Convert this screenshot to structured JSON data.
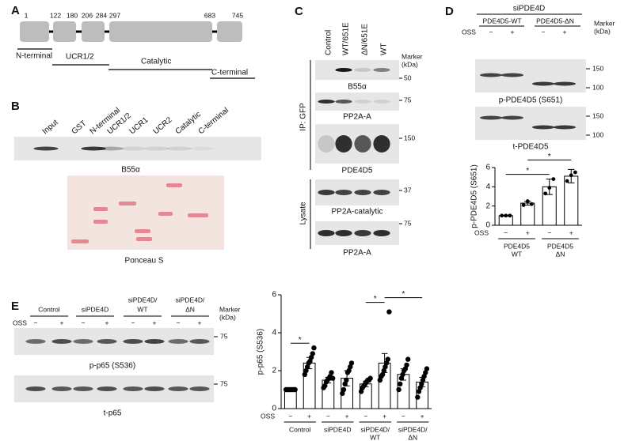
{
  "panel_labels": [
    "A",
    "B",
    "C",
    "D",
    "E"
  ],
  "panel_a": {
    "positions": [
      1,
      122,
      180,
      206,
      284,
      297,
      683,
      745
    ],
    "regions": [
      "N-terminal",
      "UCR1/2",
      "Catalytic",
      "C-terminal"
    ]
  },
  "panel_b": {
    "lanes": [
      "Input",
      "GST",
      "N-terminal",
      "UCR1/2",
      "UCR1",
      "UCR2",
      "Catalytic",
      "C-terminal"
    ],
    "blot": "B55α",
    "stain": "Ponceau S"
  },
  "panel_c": {
    "lanes": [
      "Control",
      "WT/651E",
      "ΔN/651E",
      "WT"
    ],
    "marker": [
      "Marker",
      "(kDa)"
    ],
    "ip": "IP: GFP",
    "lysate": "Lysate",
    "blots": [
      {
        "label": "B55α",
        "marker": 50
      },
      {
        "label": "PP2A-A",
        "marker": 75
      },
      {
        "label": "PDE4D5",
        "marker": 150
      },
      {
        "label": "PP2A-catalytic",
        "marker": 37
      },
      {
        "label": "PP2A-A",
        "marker": 75
      }
    ]
  },
  "panel_d": {
    "sirna": "siPDE4D",
    "groups": [
      "PDE4D5-WT",
      "PDE4D5-ΔN"
    ],
    "marker": [
      "Marker",
      "(kDa)"
    ],
    "oss": "OSS",
    "treat": [
      "−",
      "+",
      "−",
      "+"
    ],
    "blots": [
      {
        "label": "p-PDE4D5 (S651)",
        "markers": [
          150,
          100
        ]
      },
      {
        "label": "t-PDE4D5",
        "markers": [
          150,
          100
        ]
      }
    ]
  },
  "panel_e": {
    "groups": [
      [
        "Control"
      ],
      [
        "siPDE4D"
      ],
      [
        "siPDE4D/",
        "WT"
      ],
      [
        "siPDE4D/",
        "ΔN"
      ]
    ],
    "marker": [
      "Marker",
      "(kDa)"
    ],
    "oss": "OSS",
    "treat": [
      "−",
      "+",
      "−",
      "+",
      "−",
      "+",
      "−",
      "+"
    ],
    "blots": [
      {
        "label": "p-p65 (S536)",
        "marker": 75
      },
      {
        "label": "t-p65",
        "marker": 75
      }
    ]
  },
  "chart_data": [
    {
      "type": "bar",
      "ylabel": "p-PDE4D5 (S651)",
      "xlabel": "OSS",
      "categories": [
        "−",
        "+",
        "−",
        "+"
      ],
      "groups": [
        [
          "PDE4D5",
          "WT"
        ],
        [
          "PDE4D5",
          "ΔN"
        ]
      ],
      "values": [
        1.0,
        2.3,
        4.0,
        5.1
      ],
      "errors": [
        0.05,
        0.2,
        0.8,
        0.7
      ],
      "points": [
        [
          1.0,
          1.0,
          1.0
        ],
        [
          2.1,
          2.5,
          2.2
        ],
        [
          3.3,
          3.9,
          4.8
        ],
        [
          4.6,
          5.2,
          5.5
        ]
      ],
      "ylim": [
        0,
        6
      ],
      "yticks": [
        0,
        2,
        4,
        6
      ],
      "color": "#ffffff",
      "comparisons": [
        {
          "bars": [
            0,
            2
          ],
          "label": "*"
        },
        {
          "bars": [
            1,
            3
          ],
          "label": "*"
        }
      ]
    },
    {
      "type": "bar",
      "ylabel": "p-p65 (S536)",
      "xlabel": "OSS",
      "categories": [
        "−",
        "+",
        "−",
        "+",
        "−",
        "+",
        "−",
        "+"
      ],
      "groups": [
        [
          "Control"
        ],
        [
          "siPDE4D"
        ],
        [
          "siPDE4D/",
          "WT"
        ],
        [
          "siPDE4D/",
          "ΔN"
        ]
      ],
      "values": [
        1.0,
        2.4,
        1.5,
        1.6,
        1.3,
        2.4,
        1.8,
        1.4
      ],
      "errors": [
        0.03,
        0.3,
        0.15,
        0.4,
        0.15,
        0.5,
        0.3,
        0.25
      ],
      "points": [
        [
          1,
          1,
          1,
          1,
          1,
          1,
          1,
          1
        ],
        [
          1.8,
          2.0,
          2.2,
          2.4,
          2.5,
          2.7,
          2.9,
          3.2
        ],
        [
          1.1,
          1.2,
          1.4,
          1.5,
          1.6,
          1.7,
          1.9,
          1.6
        ],
        [
          0.8,
          1.0,
          1.3,
          1.5,
          1.9,
          2.0,
          2.2,
          2.4
        ],
        [
          0.9,
          1.1,
          1.2,
          1.3,
          1.4,
          1.5,
          1.5,
          1.6
        ],
        [
          1.5,
          1.7,
          1.8,
          2.0,
          2.2,
          2.4,
          2.6,
          5.1
        ],
        [
          1.0,
          1.3,
          1.6,
          1.8,
          2.0,
          2.1,
          2.3,
          2.6
        ],
        [
          0.6,
          0.9,
          1.1,
          1.3,
          1.5,
          1.7,
          1.9,
          2.1
        ]
      ],
      "ylim": [
        0,
        6
      ],
      "yticks": [
        0,
        2,
        4,
        6
      ],
      "color": "#ffffff",
      "comparisons": [
        {
          "bars": [
            0,
            1
          ],
          "label": "*"
        },
        {
          "bars": [
            4,
            5
          ],
          "label": "*"
        },
        {
          "bars": [
            5,
            7
          ],
          "label": "*"
        }
      ]
    }
  ]
}
